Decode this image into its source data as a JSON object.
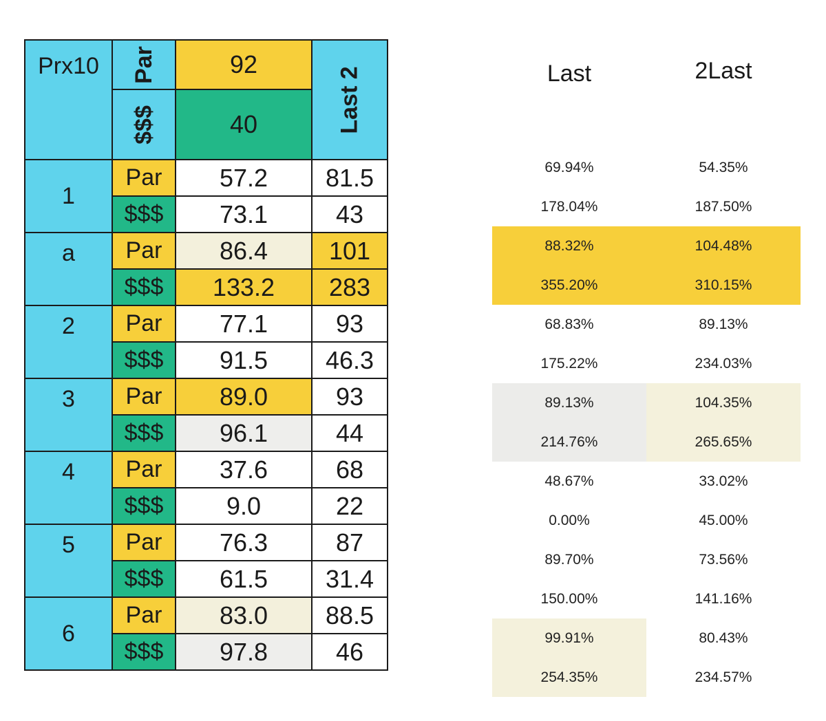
{
  "header": {
    "prx_label": "Prx10",
    "par_label": "Par",
    "money_label": "$$$",
    "par_value": "92",
    "money_value": "40",
    "last2_label": "Last 2"
  },
  "rows": [
    {
      "label": "1",
      "par": "57.2",
      "par_last2": "81.5",
      "money": "73.1",
      "money_last2": "43"
    },
    {
      "label": "a",
      "par": "86.4",
      "par_last2": "101",
      "money": "133.2",
      "money_last2": "283"
    },
    {
      "label": "2",
      "par": "77.1",
      "par_last2": "93",
      "money": "91.5",
      "money_last2": "46.3"
    },
    {
      "label": "3",
      "par": "89.0",
      "par_last2": "93",
      "money": "96.1",
      "money_last2": "44"
    },
    {
      "label": "4",
      "par": "37.6",
      "par_last2": "68",
      "money": "9.0",
      "money_last2": "22"
    },
    {
      "label": "5",
      "par": "76.3",
      "par_last2": "87",
      "money": "61.5",
      "money_last2": "31.4"
    },
    {
      "label": "6",
      "par": "83.0",
      "par_last2": "88.5",
      "money": "97.8",
      "money_last2": "46"
    }
  ],
  "right": {
    "col_last": "Last",
    "col_2last": "2Last",
    "rows": [
      {
        "last": "69.94%",
        "last2": "54.35%"
      },
      {
        "last": "178.04%",
        "last2": "187.50%"
      },
      {
        "last": "88.32%",
        "last2": "104.48%"
      },
      {
        "last": "355.20%",
        "last2": "310.15%"
      },
      {
        "last": "68.83%",
        "last2": "89.13%"
      },
      {
        "last": "175.22%",
        "last2": "234.03%"
      },
      {
        "last": "89.13%",
        "last2": "104.35%"
      },
      {
        "last": "214.76%",
        "last2": "265.65%"
      },
      {
        "last": "48.67%",
        "last2": "33.02%"
      },
      {
        "last": "0.00%",
        "last2": "45.00%"
      },
      {
        "last": "89.70%",
        "last2": "73.56%"
      },
      {
        "last": "150.00%",
        "last2": "141.16%"
      },
      {
        "last": "99.91%",
        "last2": "80.43%"
      },
      {
        "last": "254.35%",
        "last2": "234.57%"
      }
    ]
  },
  "colors": {
    "blue": "#5fd3ec",
    "yellow": "#f7cf3a",
    "green": "#22b888",
    "gray": "#eeeeec",
    "cream": "#f3f0dc"
  }
}
